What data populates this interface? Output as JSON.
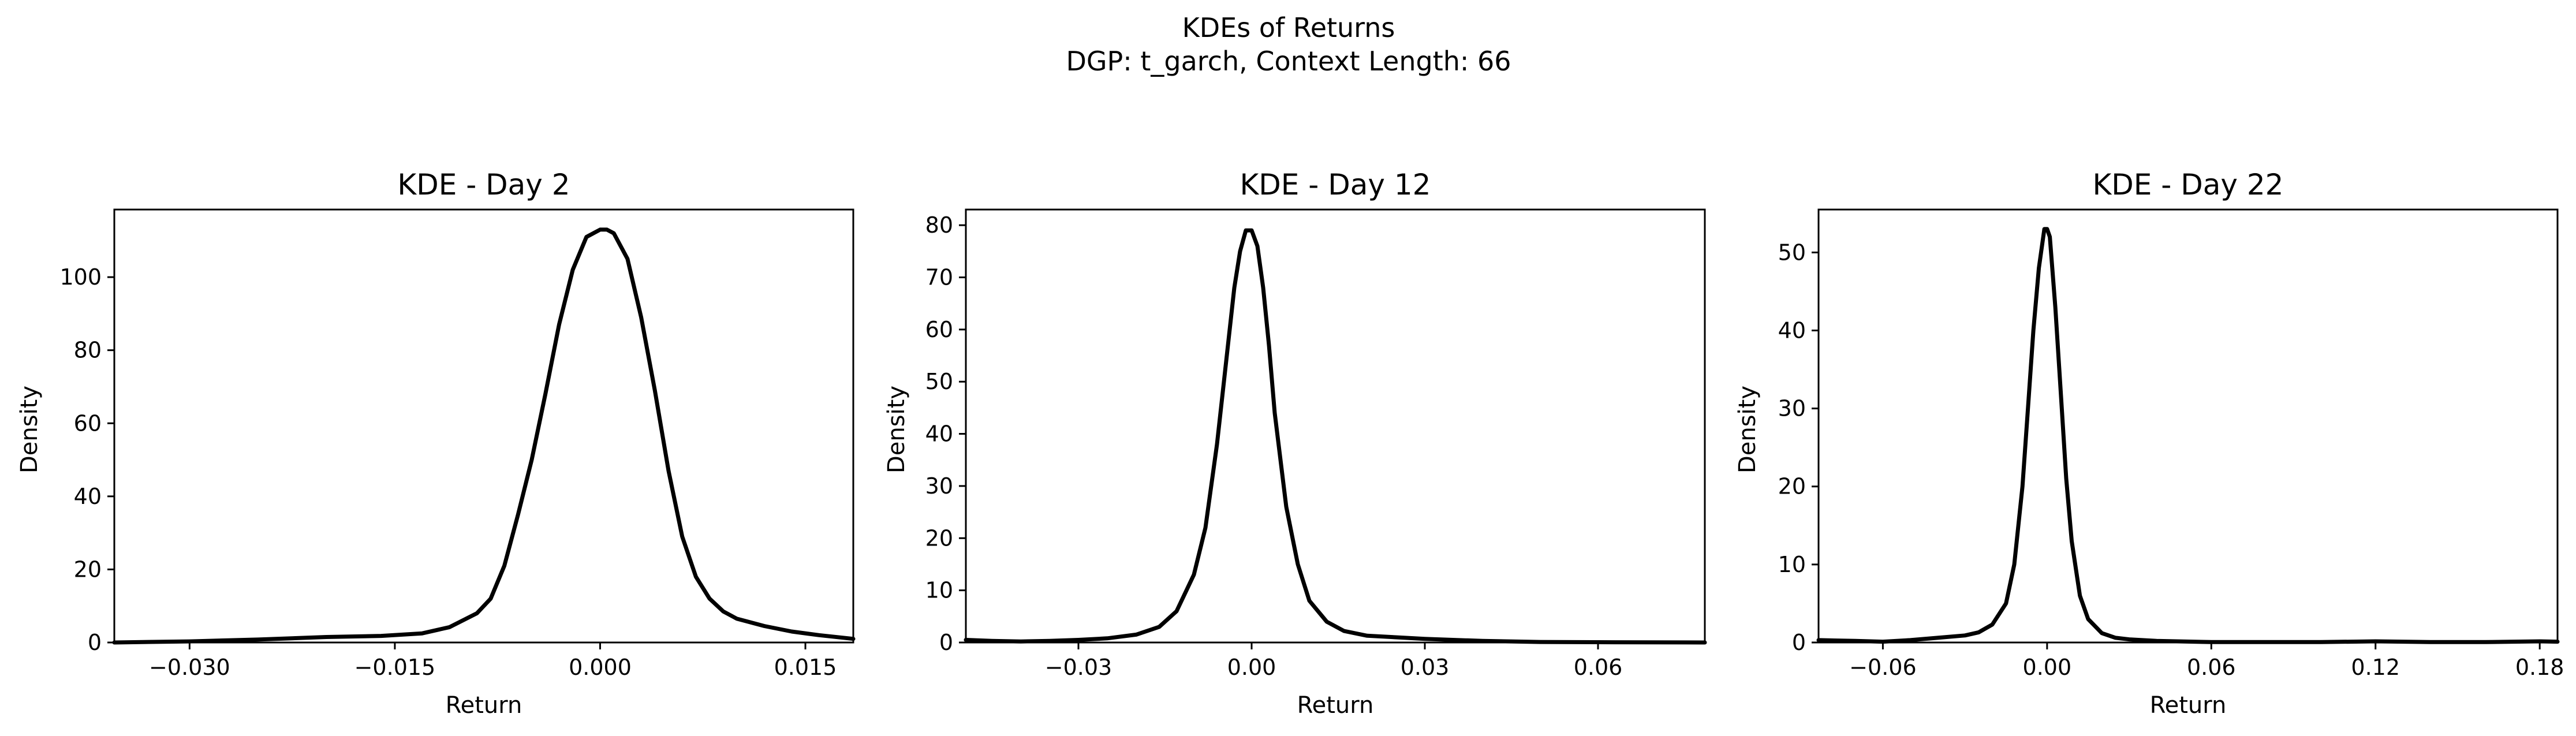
{
  "figure": {
    "suptitle_line1": "KDEs of Returns",
    "suptitle_line2": "DGP: t_garch, Context Length: 66"
  },
  "chart_data": [
    {
      "type": "line",
      "title": "KDE - Day 2",
      "xlabel": "Return",
      "ylabel": "Density",
      "xlim": [
        -0.0355,
        0.0185
      ],
      "ylim": [
        0,
        118.5
      ],
      "xticks": [
        -0.03,
        -0.015,
        0.0,
        0.015
      ],
      "xtick_labels": [
        "−0.030",
        "−0.015",
        "0.000",
        "0.015"
      ],
      "yticks": [
        0,
        20,
        40,
        60,
        80,
        100
      ],
      "ytick_labels": [
        "0",
        "20",
        "40",
        "60",
        "80",
        "100"
      ],
      "grid": false,
      "series": [
        {
          "color": "#000000",
          "x": [
            -0.0355,
            -0.03,
            -0.025,
            -0.02,
            -0.016,
            -0.013,
            -0.011,
            -0.009,
            -0.008,
            -0.007,
            -0.006,
            -0.005,
            -0.004,
            -0.003,
            -0.002,
            -0.001,
            0.0,
            0.0005,
            0.001,
            0.002,
            0.003,
            0.004,
            0.005,
            0.006,
            0.007,
            0.008,
            0.009,
            0.01,
            0.012,
            0.014,
            0.016,
            0.0185
          ],
          "y": [
            0,
            0.3,
            0.8,
            1.5,
            1.8,
            2.5,
            4.2,
            8,
            12,
            21,
            35,
            50,
            68,
            87,
            102,
            111,
            113,
            113,
            112,
            105,
            89,
            69,
            47,
            29,
            18,
            12,
            8.5,
            6.5,
            4.5,
            3,
            2,
            1
          ]
        }
      ]
    },
    {
      "type": "line",
      "title": "KDE - Day 12",
      "xlabel": "Return",
      "ylabel": "Density",
      "xlim": [
        -0.0495,
        0.0785
      ],
      "ylim": [
        0,
        83
      ],
      "xticks": [
        -0.03,
        0.0,
        0.03,
        0.06
      ],
      "xtick_labels": [
        "−0.03",
        "0.00",
        "0.03",
        "0.06"
      ],
      "yticks": [
        0,
        10,
        20,
        30,
        40,
        50,
        60,
        70,
        80
      ],
      "ytick_labels": [
        "0",
        "10",
        "20",
        "30",
        "40",
        "50",
        "60",
        "70",
        "80"
      ],
      "grid": false,
      "series": [
        {
          "color": "#000000",
          "x": [
            -0.0495,
            -0.045,
            -0.04,
            -0.035,
            -0.03,
            -0.025,
            -0.02,
            -0.016,
            -0.013,
            -0.01,
            -0.008,
            -0.006,
            -0.004,
            -0.003,
            -0.002,
            -0.001,
            0.0,
            0.001,
            0.002,
            0.003,
            0.004,
            0.006,
            0.008,
            0.01,
            0.013,
            0.016,
            0.02,
            0.025,
            0.03,
            0.04,
            0.05,
            0.06,
            0.0785
          ],
          "y": [
            0.5,
            0.3,
            0.2,
            0.3,
            0.5,
            0.8,
            1.5,
            3,
            6,
            13,
            22,
            38,
            58,
            68,
            75,
            79,
            79,
            76,
            68,
            57,
            44,
            26,
            15,
            8,
            4,
            2.2,
            1.3,
            1,
            0.7,
            0.3,
            0.1,
            0.05,
            0
          ]
        }
      ]
    },
    {
      "type": "line",
      "title": "KDE - Day 22",
      "xlabel": "Return",
      "ylabel": "Density",
      "xlim": [
        -0.0835,
        0.1865
      ],
      "ylim": [
        0,
        55.5
      ],
      "xticks": [
        -0.06,
        0.0,
        0.06,
        0.12,
        0.18
      ],
      "xtick_labels": [
        "−0.06",
        "0.00",
        "0.06",
        "0.12",
        "0.18"
      ],
      "yticks": [
        0,
        10,
        20,
        30,
        40,
        50
      ],
      "ytick_labels": [
        "0",
        "10",
        "20",
        "30",
        "40",
        "50"
      ],
      "grid": false,
      "series": [
        {
          "color": "#000000",
          "x": [
            -0.0835,
            -0.07,
            -0.06,
            -0.05,
            -0.04,
            -0.03,
            -0.025,
            -0.02,
            -0.015,
            -0.012,
            -0.009,
            -0.007,
            -0.005,
            -0.003,
            -0.001,
            0.0,
            0.001,
            0.003,
            0.005,
            0.007,
            0.009,
            0.012,
            0.015,
            0.02,
            0.025,
            0.03,
            0.04,
            0.06,
            0.08,
            0.1,
            0.12,
            0.14,
            0.16,
            0.18,
            0.1865
          ],
          "y": [
            0.3,
            0.2,
            0.1,
            0.3,
            0.6,
            0.9,
            1.3,
            2.3,
            5,
            10,
            20,
            30,
            40,
            48,
            53,
            53,
            52,
            43,
            32,
            21,
            13,
            6,
            3,
            1.2,
            0.6,
            0.4,
            0.2,
            0.05,
            0.05,
            0.05,
            0.15,
            0.05,
            0.05,
            0.15,
            0.1
          ]
        }
      ]
    }
  ]
}
